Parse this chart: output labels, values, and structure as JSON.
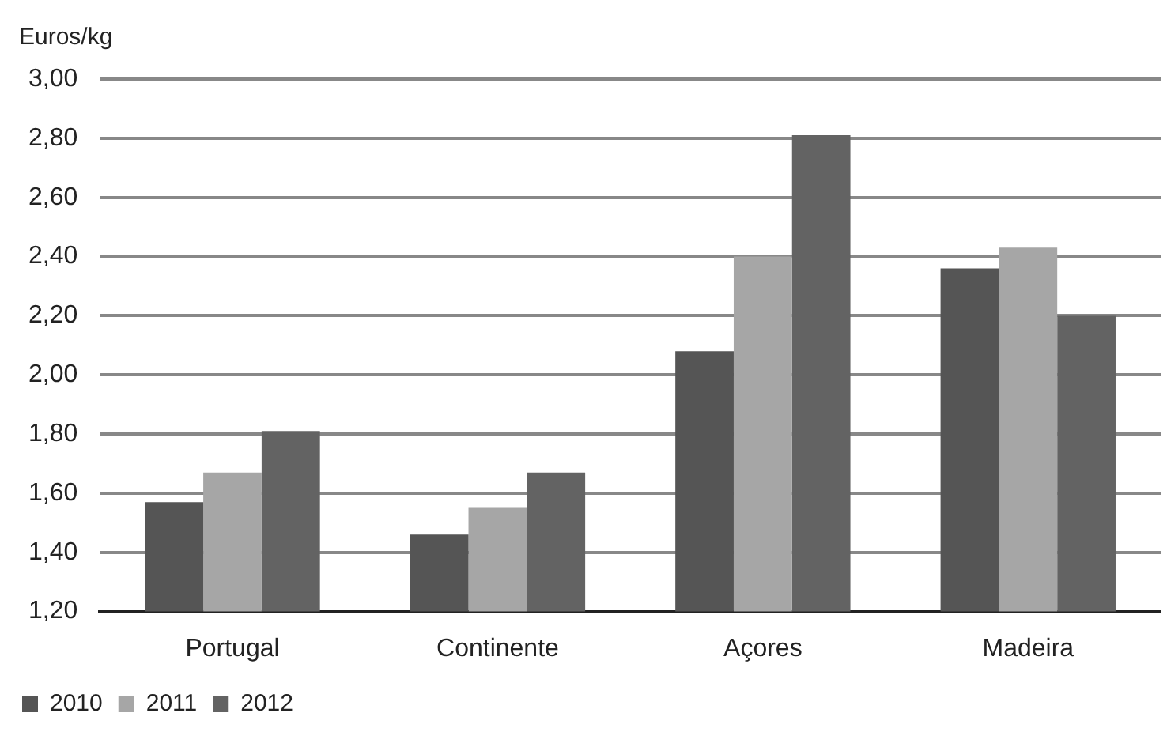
{
  "chart_data": {
    "type": "bar",
    "ylabel": "Euros/kg",
    "categories": [
      "Portugal",
      "Continente",
      "Açores",
      "Madeira"
    ],
    "series": [
      {
        "name": "2010",
        "color": "#555555",
        "values": [
          1.57,
          1.46,
          2.08,
          2.36
        ]
      },
      {
        "name": "2011",
        "color": "#a6a6a6",
        "values": [
          1.67,
          1.55,
          2.4,
          2.43
        ]
      },
      {
        "name": "2012",
        "color": "#636363",
        "values": [
          1.81,
          1.67,
          2.81,
          2.2
        ]
      }
    ],
    "ylim": [
      1.2,
      3.0
    ],
    "yticks": [
      {
        "value": 1.2,
        "label": "1,20"
      },
      {
        "value": 1.4,
        "label": "1,40"
      },
      {
        "value": 1.6,
        "label": "1,60"
      },
      {
        "value": 1.8,
        "label": "1,80"
      },
      {
        "value": 2.0,
        "label": "2,00"
      },
      {
        "value": 2.2,
        "label": "2,20"
      },
      {
        "value": 2.4,
        "label": "2,40"
      },
      {
        "value": 2.6,
        "label": "2,60"
      },
      {
        "value": 2.8,
        "label": "2,80"
      },
      {
        "value": 3.0,
        "label": "3,00"
      }
    ],
    "grid": "y",
    "legend": "bottom left"
  }
}
